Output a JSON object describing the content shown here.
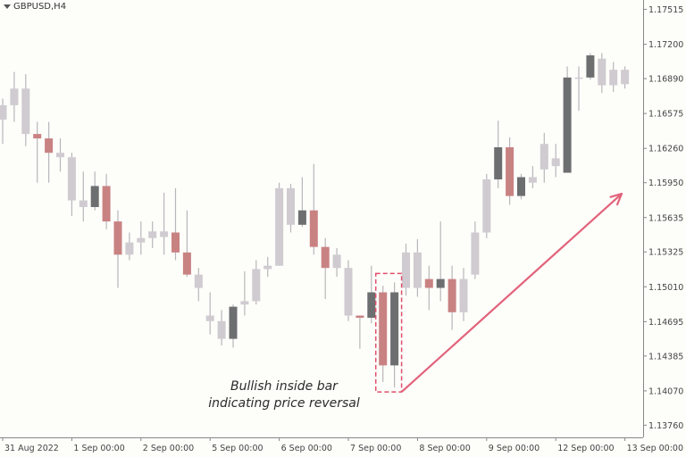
{
  "symbol": "GBPUSD,H4",
  "annotation": {
    "line1": "Bullish inside bar",
    "line2": "indicating price reversal"
  },
  "colors": {
    "bull": "#cfcbd0",
    "bear": "#c98282",
    "neutral": "#6d6e70",
    "wick": "#b8b6ba",
    "arrow": "#e2637a",
    "highlight_box": "#e0506a",
    "background": "#fdfdfa",
    "axis": "#888888"
  },
  "chart_data": {
    "type": "candlestick",
    "title": "GBPUSD,H4",
    "y_ticks": [
      "1.17515",
      "1.17200",
      "1.16890",
      "1.16575",
      "1.16260",
      "1.15950",
      "1.15635",
      "1.15325",
      "1.15010",
      "1.14695",
      "1.14385",
      "1.14070",
      "1.13760"
    ],
    "ylim": [
      1.1365,
      1.176
    ],
    "x_ticks": [
      {
        "label": "31 Aug 2022",
        "index": 0
      },
      {
        "label": "1 Sep 00:00",
        "index": 6
      },
      {
        "label": "2 Sep 00:00",
        "index": 12
      },
      {
        "label": "5 Sep 00:00",
        "index": 18
      },
      {
        "label": "6 Sep 00:00",
        "index": 24
      },
      {
        "label": "7 Sep 00:00",
        "index": 30
      },
      {
        "label": "8 Sep 00:00",
        "index": 36
      },
      {
        "label": "9 Sep 00:00",
        "index": 42
      },
      {
        "label": "12 Sep 00:00",
        "index": 48
      },
      {
        "label": "13 Sep 00:00",
        "index": 54
      }
    ],
    "candles": [
      {
        "o": 1.1652,
        "h": 1.1671,
        "l": 1.163,
        "c": 1.1665,
        "k": "bull"
      },
      {
        "o": 1.1665,
        "h": 1.1695,
        "l": 1.165,
        "c": 1.168,
        "k": "bull"
      },
      {
        "o": 1.168,
        "h": 1.1693,
        "l": 1.1628,
        "c": 1.1639,
        "k": "bull"
      },
      {
        "o": 1.1639,
        "h": 1.165,
        "l": 1.1595,
        "c": 1.1635,
        "k": "bear"
      },
      {
        "o": 1.1635,
        "h": 1.165,
        "l": 1.1595,
        "c": 1.1622,
        "k": "bear"
      },
      {
        "o": 1.1622,
        "h": 1.1635,
        "l": 1.1605,
        "c": 1.1618,
        "k": "bull"
      },
      {
        "o": 1.1618,
        "h": 1.1622,
        "l": 1.1565,
        "c": 1.1579,
        "k": "bull"
      },
      {
        "o": 1.1579,
        "h": 1.1605,
        "l": 1.156,
        "c": 1.1573,
        "k": "bull"
      },
      {
        "o": 1.1573,
        "h": 1.1605,
        "l": 1.157,
        "c": 1.1592,
        "k": "neutral"
      },
      {
        "o": 1.1592,
        "h": 1.1603,
        "l": 1.1553,
        "c": 1.156,
        "k": "bear"
      },
      {
        "o": 1.156,
        "h": 1.157,
        "l": 1.15,
        "c": 1.153,
        "k": "bear"
      },
      {
        "o": 1.153,
        "h": 1.155,
        "l": 1.1525,
        "c": 1.1541,
        "k": "bull"
      },
      {
        "o": 1.1541,
        "h": 1.156,
        "l": 1.153,
        "c": 1.1545,
        "k": "bull"
      },
      {
        "o": 1.1545,
        "h": 1.156,
        "l": 1.1536,
        "c": 1.1551,
        "k": "bull"
      },
      {
        "o": 1.1551,
        "h": 1.1586,
        "l": 1.153,
        "c": 1.1546,
        "k": "bull"
      },
      {
        "o": 1.155,
        "h": 1.159,
        "l": 1.1525,
        "c": 1.1532,
        "k": "bear"
      },
      {
        "o": 1.1532,
        "h": 1.157,
        "l": 1.151,
        "c": 1.1512,
        "k": "bear"
      },
      {
        "o": 1.1512,
        "h": 1.1518,
        "l": 1.1488,
        "c": 1.15,
        "k": "bull"
      },
      {
        "o": 1.1475,
        "h": 1.1496,
        "l": 1.1458,
        "c": 1.147,
        "k": "bull"
      },
      {
        "o": 1.147,
        "h": 1.148,
        "l": 1.1448,
        "c": 1.1454,
        "k": "bull"
      },
      {
        "o": 1.1454,
        "h": 1.1485,
        "l": 1.1446,
        "c": 1.1483,
        "k": "neutral"
      },
      {
        "o": 1.1485,
        "h": 1.1515,
        "l": 1.1475,
        "c": 1.1488,
        "k": "bull"
      },
      {
        "o": 1.1488,
        "h": 1.1525,
        "l": 1.1485,
        "c": 1.1517,
        "k": "bull"
      },
      {
        "o": 1.1517,
        "h": 1.1528,
        "l": 1.151,
        "c": 1.152,
        "k": "bull"
      },
      {
        "o": 1.152,
        "h": 1.1595,
        "l": 1.152,
        "c": 1.159,
        "k": "bull"
      },
      {
        "o": 1.159,
        "h": 1.1594,
        "l": 1.155,
        "c": 1.1557,
        "k": "bull"
      },
      {
        "o": 1.1557,
        "h": 1.16,
        "l": 1.1555,
        "c": 1.157,
        "k": "neutral"
      },
      {
        "o": 1.157,
        "h": 1.1612,
        "l": 1.153,
        "c": 1.1537,
        "k": "bear"
      },
      {
        "o": 1.1537,
        "h": 1.1545,
        "l": 1.149,
        "c": 1.1518,
        "k": "bear"
      },
      {
        "o": 1.1518,
        "h": 1.1536,
        "l": 1.151,
        "c": 1.153,
        "k": "bull"
      },
      {
        "o": 1.1518,
        "h": 1.1525,
        "l": 1.147,
        "c": 1.1475,
        "k": "bull"
      },
      {
        "o": 1.1475,
        "h": 1.1475,
        "l": 1.1445,
        "c": 1.1473,
        "k": "bear"
      },
      {
        "o": 1.1473,
        "h": 1.152,
        "l": 1.1468,
        "c": 1.1496,
        "k": "neutral"
      },
      {
        "o": 1.1496,
        "h": 1.1502,
        "l": 1.1415,
        "c": 1.143,
        "k": "bear"
      },
      {
        "o": 1.143,
        "h": 1.1505,
        "l": 1.141,
        "c": 1.1496,
        "k": "neutral"
      },
      {
        "o": 1.15,
        "h": 1.154,
        "l": 1.1493,
        "c": 1.1532,
        "k": "bull"
      },
      {
        "o": 1.1532,
        "h": 1.1544,
        "l": 1.1492,
        "c": 1.15,
        "k": "bull"
      },
      {
        "o": 1.15,
        "h": 1.152,
        "l": 1.148,
        "c": 1.1508,
        "k": "bear"
      },
      {
        "o": 1.1508,
        "h": 1.156,
        "l": 1.1488,
        "c": 1.15,
        "k": "neutral"
      },
      {
        "o": 1.1508,
        "h": 1.152,
        "l": 1.1462,
        "c": 1.1478,
        "k": "bear"
      },
      {
        "o": 1.1478,
        "h": 1.1518,
        "l": 1.147,
        "c": 1.1508,
        "k": "bull"
      },
      {
        "o": 1.1512,
        "h": 1.156,
        "l": 1.1508,
        "c": 1.155,
        "k": "bull"
      },
      {
        "o": 1.155,
        "h": 1.1603,
        "l": 1.1545,
        "c": 1.1598,
        "k": "bull"
      },
      {
        "o": 1.1598,
        "h": 1.1651,
        "l": 1.159,
        "c": 1.1627,
        "k": "neutral"
      },
      {
        "o": 1.1627,
        "h": 1.1636,
        "l": 1.1575,
        "c": 1.1583,
        "k": "bear"
      },
      {
        "o": 1.1583,
        "h": 1.1603,
        "l": 1.158,
        "c": 1.16,
        "k": "neutral"
      },
      {
        "o": 1.16,
        "h": 1.161,
        "l": 1.159,
        "c": 1.1595,
        "k": "bull"
      },
      {
        "o": 1.1607,
        "h": 1.164,
        "l": 1.1595,
        "c": 1.163,
        "k": "bull"
      },
      {
        "o": 1.161,
        "h": 1.163,
        "l": 1.16,
        "c": 1.1617,
        "k": "bull"
      },
      {
        "o": 1.1604,
        "h": 1.17,
        "l": 1.1604,
        "c": 1.169,
        "k": "neutral"
      },
      {
        "o": 1.169,
        "h": 1.17,
        "l": 1.166,
        "c": 1.169,
        "k": "bull"
      },
      {
        "o": 1.169,
        "h": 1.1712,
        "l": 1.1688,
        "c": 1.171,
        "k": "neutral"
      },
      {
        "o": 1.1707,
        "h": 1.1712,
        "l": 1.1676,
        "c": 1.1683,
        "k": "bull"
      },
      {
        "o": 1.1683,
        "h": 1.1704,
        "l": 1.1677,
        "c": 1.1697,
        "k": "bull"
      },
      {
        "o": 1.1697,
        "h": 1.17,
        "l": 1.168,
        "c": 1.1684,
        "k": "bull"
      }
    ],
    "highlight_candles": [
      33,
      34
    ]
  }
}
